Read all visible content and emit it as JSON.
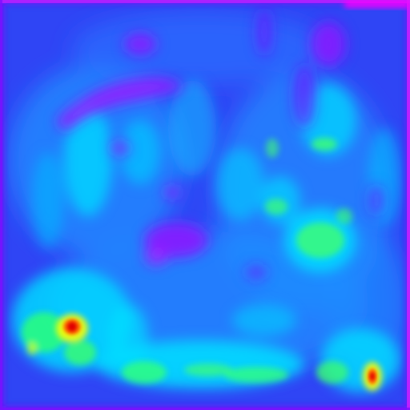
{
  "image": {
    "kind": "heatmap-saliency-overlay",
    "colormap": "jet",
    "palette": {
      "low": "#ff00ff",
      "low_mid": "#3a2cf2",
      "mid": "#1e88ff",
      "mid_high": "#00e5ff",
      "high": "#3cff6a",
      "very_high": "#ffff00",
      "peak": "#ff2200"
    },
    "regions": [
      {
        "name": "left-peak-hotspot",
        "level": 1.0
      },
      {
        "name": "right-peak-hotspot",
        "level": 0.95
      },
      {
        "name": "bottom-green-band",
        "level": 0.65
      },
      {
        "name": "right-cyan-blob",
        "level": 0.55
      }
    ]
  }
}
